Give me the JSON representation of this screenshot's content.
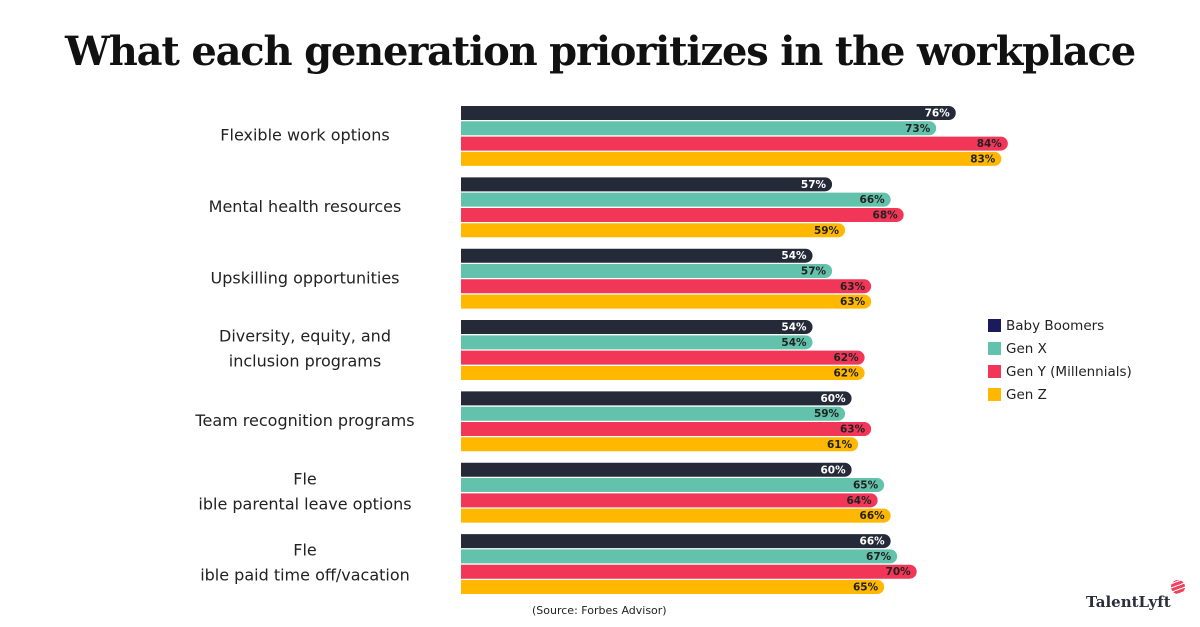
{
  "title": "What each generation prioritizes in the workplace",
  "source": "(Source: Forbes Advisor)",
  "logo": "TalentLyft",
  "chart_data": {
    "type": "bar",
    "orientation": "horizontal",
    "title": "What each generation prioritizes in the workplace",
    "categories": [
      "Flexible work options",
      "Mental health resources",
      "Upskilling opportunities",
      "Diversity, equity, and inclusion programs",
      "Team recognition programs",
      "Flexible parental leave options",
      "Flexible paid time off/vacation"
    ],
    "series": [
      {
        "name": "Baby Boomers",
        "color": "#252a38",
        "legend_color": "#1b1a5c",
        "label_color": "#ffffff",
        "values": [
          76,
          57,
          54,
          54,
          60,
          60,
          66
        ]
      },
      {
        "name": "Gen X",
        "color": "#63c2ab",
        "label_color": "#222222",
        "values": [
          73,
          66,
          57,
          54,
          59,
          65,
          67
        ]
      },
      {
        "name": "Gen Y (Millennials)",
        "color": "#f23658",
        "label_color": "#222222",
        "values": [
          84,
          68,
          63,
          62,
          63,
          64,
          70
        ]
      },
      {
        "name": "Gen Z",
        "color": "#ffb700",
        "label_color": "#222222",
        "values": [
          83,
          59,
          63,
          62,
          61,
          66,
          65
        ]
      }
    ],
    "value_suffix": "%",
    "xlim": [
      0,
      100
    ],
    "grid": false,
    "legend_position": "right"
  }
}
